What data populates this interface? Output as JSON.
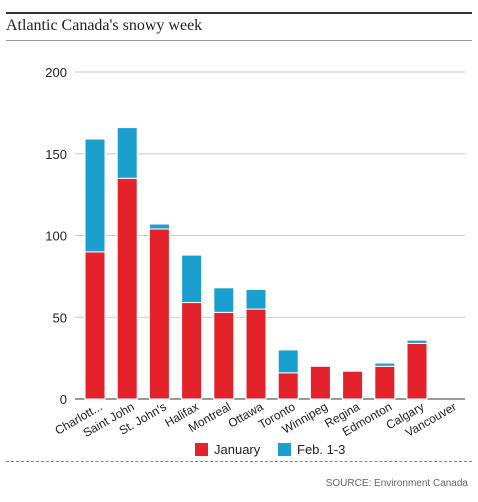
{
  "title": "Atlantic Canada's snowy week",
  "source": "SOURCE: Environment Canada",
  "colors": {
    "january": "#e3222b",
    "feb": "#1a9fce",
    "grid": "#cccccc",
    "axis": "#333333",
    "text": "#222222"
  },
  "chart_data": {
    "type": "bar",
    "stacked": true,
    "title": "Atlantic Canada's snowy week",
    "xlabel": "",
    "ylabel": "",
    "ylim": [
      0,
      200
    ],
    "yticks": [
      0,
      50,
      100,
      150,
      200
    ],
    "grid": true,
    "legend_position": "bottom",
    "categories": [
      "Charlott...",
      "Saint John",
      "St. John's",
      "Halifax",
      "Montreal",
      "Ottawa",
      "Toronto",
      "Winnipeg",
      "Regina",
      "Edmonton",
      "Calgary",
      "Vancouver"
    ],
    "series": [
      {
        "name": "January",
        "color": "#e3222b",
        "values": [
          90,
          135,
          104,
          59,
          53,
          55,
          16,
          20,
          17,
          20,
          34,
          0
        ]
      },
      {
        "name": "Feb. 1-3",
        "color": "#1a9fce",
        "values": [
          69,
          31,
          3,
          29,
          15,
          12,
          14,
          0,
          0,
          2,
          2,
          0
        ]
      }
    ]
  }
}
